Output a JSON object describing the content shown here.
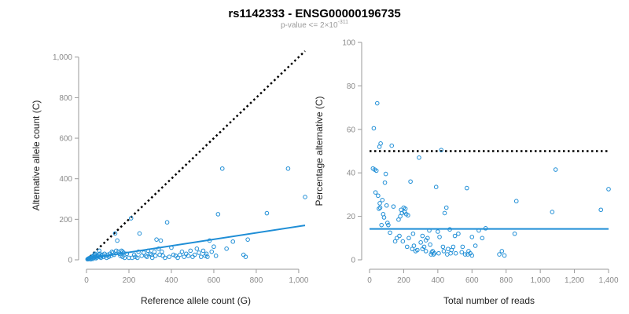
{
  "header": {
    "title": "rs1142333 - ENSG00000196735",
    "pvalue_prefix": "p-value <= 2",
    "pvalue_times": "×",
    "pvalue_base": "10",
    "pvalue_exponent": "-311"
  },
  "colors": {
    "points": "#1f8ed6",
    "fit_line": "#1f8ed6",
    "reference": "#000000"
  },
  "chart_data": [
    {
      "type": "scatter",
      "name": "allele-counts",
      "title": "",
      "xlabel": "Reference allele count (G)",
      "ylabel": "Alternative allele count (C)",
      "xlim": [
        0,
        1030
      ],
      "ylim": [
        0,
        1030
      ],
      "xticks": [
        0,
        200,
        400,
        600,
        800,
        1000
      ],
      "xtick_labels": [
        "0",
        "200",
        "400",
        "600",
        "800",
        "1,000"
      ],
      "yticks": [
        0,
        200,
        400,
        600,
        800,
        1000
      ],
      "ytick_labels": [
        "0",
        "200",
        "400",
        "600",
        "800",
        "1,000"
      ],
      "reference_line": {
        "style": "dotted",
        "from": [
          0,
          0
        ],
        "to": [
          1030,
          1030
        ]
      },
      "fit_line": {
        "style": "solid",
        "from": [
          0,
          5
        ],
        "to": [
          1030,
          170
        ]
      },
      "points": [
        [
          5,
          3
        ],
        [
          8,
          5
        ],
        [
          10,
          4
        ],
        [
          12,
          8
        ],
        [
          15,
          6
        ],
        [
          18,
          10
        ],
        [
          20,
          3
        ],
        [
          22,
          12
        ],
        [
          25,
          8
        ],
        [
          28,
          15
        ],
        [
          30,
          5
        ],
        [
          32,
          20
        ],
        [
          35,
          10
        ],
        [
          38,
          25
        ],
        [
          40,
          30
        ],
        [
          42,
          15
        ],
        [
          45,
          8
        ],
        [
          48,
          20
        ],
        [
          50,
          12
        ],
        [
          55,
          18
        ],
        [
          58,
          25
        ],
        [
          60,
          45
        ],
        [
          62,
          30
        ],
        [
          65,
          15
        ],
        [
          68,
          10
        ],
        [
          70,
          20
        ],
        [
          75,
          25
        ],
        [
          80,
          15
        ],
        [
          85,
          30
        ],
        [
          90,
          20
        ],
        [
          95,
          10
        ],
        [
          100,
          25
        ],
        [
          105,
          15
        ],
        [
          110,
          30
        ],
        [
          115,
          20
        ],
        [
          120,
          40
        ],
        [
          125,
          35
        ],
        [
          130,
          25
        ],
        [
          135,
          130
        ],
        [
          140,
          45
        ],
        [
          145,
          95
        ],
        [
          150,
          40
        ],
        [
          155,
          30
        ],
        [
          160,
          20
        ],
        [
          165,
          45
        ],
        [
          170,
          40
        ],
        [
          175,
          35
        ],
        [
          180,
          10
        ],
        [
          200,
          10
        ],
        [
          210,
          205
        ],
        [
          230,
          15
        ],
        [
          240,
          10
        ],
        [
          250,
          130
        ],
        [
          260,
          20
        ],
        [
          270,
          35
        ],
        [
          280,
          20
        ],
        [
          290,
          45
        ],
        [
          300,
          30
        ],
        [
          310,
          10
        ],
        [
          320,
          40
        ],
        [
          330,
          100
        ],
        [
          340,
          55
        ],
        [
          345,
          25
        ],
        [
          350,
          95
        ],
        [
          360,
          20
        ],
        [
          380,
          185
        ],
        [
          390,
          15
        ],
        [
          400,
          60
        ],
        [
          420,
          20
        ],
        [
          430,
          10
        ],
        [
          440,
          25
        ],
        [
          460,
          15
        ],
        [
          480,
          20
        ],
        [
          500,
          15
        ],
        [
          520,
          55
        ],
        [
          540,
          15
        ],
        [
          560,
          20
        ],
        [
          570,
          15
        ],
        [
          580,
          95
        ],
        [
          590,
          40
        ],
        [
          600,
          65
        ],
        [
          620,
          225
        ],
        [
          640,
          450
        ],
        [
          690,
          90
        ],
        [
          740,
          25
        ],
        [
          750,
          15
        ],
        [
          760,
          100
        ],
        [
          850,
          230
        ],
        [
          950,
          450
        ],
        [
          1030,
          310
        ],
        [
          170,
          15
        ],
        [
          190,
          30
        ],
        [
          215,
          10
        ],
        [
          225,
          25
        ],
        [
          245,
          40
        ],
        [
          285,
          15
        ],
        [
          305,
          25
        ],
        [
          325,
          20
        ],
        [
          355,
          40
        ],
        [
          370,
          10
        ],
        [
          410,
          25
        ],
        [
          450,
          40
        ],
        [
          470,
          30
        ],
        [
          490,
          45
        ],
        [
          510,
          25
        ],
        [
          530,
          35
        ],
        [
          550,
          45
        ],
        [
          565,
          30
        ],
        [
          610,
          20
        ],
        [
          660,
          55
        ]
      ]
    },
    {
      "type": "scatter",
      "name": "percentage-alternative",
      "title": "",
      "xlabel": "Total number of reads",
      "ylabel": "Percentage alternative (C)",
      "xlim": [
        0,
        1400
      ],
      "ylim": [
        0,
        100
      ],
      "xticks": [
        0,
        200,
        400,
        600,
        800,
        1000,
        1200,
        1400
      ],
      "xtick_labels": [
        "0",
        "200",
        "400",
        "600",
        "800",
        "1,000",
        "1,200",
        "1,400"
      ],
      "yticks": [
        0,
        20,
        40,
        60,
        80,
        100
      ],
      "ytick_labels": [
        "0",
        "20",
        "40",
        "60",
        "80",
        "100"
      ],
      "reference_line": {
        "style": "dotted",
        "from": [
          0,
          50
        ],
        "to": [
          1400,
          50
        ]
      },
      "fit_line": {
        "style": "solid",
        "from": [
          0,
          14.2
        ],
        "to": [
          1400,
          14.2
        ]
      },
      "points": [
        [
          20,
          42
        ],
        [
          25,
          60.5
        ],
        [
          30,
          41.5
        ],
        [
          35,
          31
        ],
        [
          40,
          41
        ],
        [
          45,
          72
        ],
        [
          50,
          29.5
        ],
        [
          55,
          23.5
        ],
        [
          58,
          52
        ],
        [
          60,
          26
        ],
        [
          62,
          24
        ],
        [
          65,
          53.5
        ],
        [
          70,
          16
        ],
        [
          75,
          27.5
        ],
        [
          80,
          21
        ],
        [
          85,
          19.5
        ],
        [
          90,
          35.5
        ],
        [
          95,
          39.5
        ],
        [
          100,
          25
        ],
        [
          105,
          17
        ],
        [
          110,
          16
        ],
        [
          120,
          12.5
        ],
        [
          130,
          52.5
        ],
        [
          140,
          24.5
        ],
        [
          150,
          8.5
        ],
        [
          160,
          10
        ],
        [
          170,
          18.5
        ],
        [
          175,
          11
        ],
        [
          180,
          20
        ],
        [
          185,
          23
        ],
        [
          190,
          21.5
        ],
        [
          195,
          8.5
        ],
        [
          200,
          24
        ],
        [
          205,
          22
        ],
        [
          210,
          23.5
        ],
        [
          215,
          21
        ],
        [
          220,
          6
        ],
        [
          225,
          20.5
        ],
        [
          230,
          10
        ],
        [
          240,
          36
        ],
        [
          250,
          5
        ],
        [
          255,
          12
        ],
        [
          260,
          6.5
        ],
        [
          270,
          4
        ],
        [
          280,
          4.5
        ],
        [
          290,
          47
        ],
        [
          300,
          8
        ],
        [
          310,
          11
        ],
        [
          320,
          6
        ],
        [
          330,
          4
        ],
        [
          340,
          10
        ],
        [
          350,
          13.5
        ],
        [
          360,
          2.5
        ],
        [
          370,
          4
        ],
        [
          380,
          3
        ],
        [
          390,
          33.5
        ],
        [
          400,
          13
        ],
        [
          410,
          10.5
        ],
        [
          420,
          50.5
        ],
        [
          430,
          6
        ],
        [
          440,
          21.5
        ],
        [
          450,
          24
        ],
        [
          460,
          5
        ],
        [
          470,
          14
        ],
        [
          480,
          4.5
        ],
        [
          490,
          6
        ],
        [
          500,
          11
        ],
        [
          520,
          12
        ],
        [
          540,
          3.5
        ],
        [
          560,
          2.5
        ],
        [
          570,
          33
        ],
        [
          580,
          4
        ],
        [
          590,
          3
        ],
        [
          600,
          10.5
        ],
        [
          620,
          6.5
        ],
        [
          640,
          13.5
        ],
        [
          660,
          10
        ],
        [
          680,
          14.5
        ],
        [
          760,
          2.5
        ],
        [
          775,
          4
        ],
        [
          790,
          2
        ],
        [
          850,
          12
        ],
        [
          860,
          27
        ],
        [
          1070,
          22
        ],
        [
          1090,
          41.5
        ],
        [
          1355,
          23
        ],
        [
          1400,
          32.5
        ],
        [
          310,
          5
        ],
        [
          330,
          9
        ],
        [
          355,
          7
        ],
        [
          365,
          3.5
        ],
        [
          375,
          2.5
        ],
        [
          405,
          3
        ],
        [
          435,
          4
        ],
        [
          455,
          2.5
        ],
        [
          475,
          3
        ],
        [
          505,
          3
        ],
        [
          545,
          6
        ],
        [
          575,
          2.5
        ],
        [
          600,
          2
        ]
      ]
    }
  ]
}
